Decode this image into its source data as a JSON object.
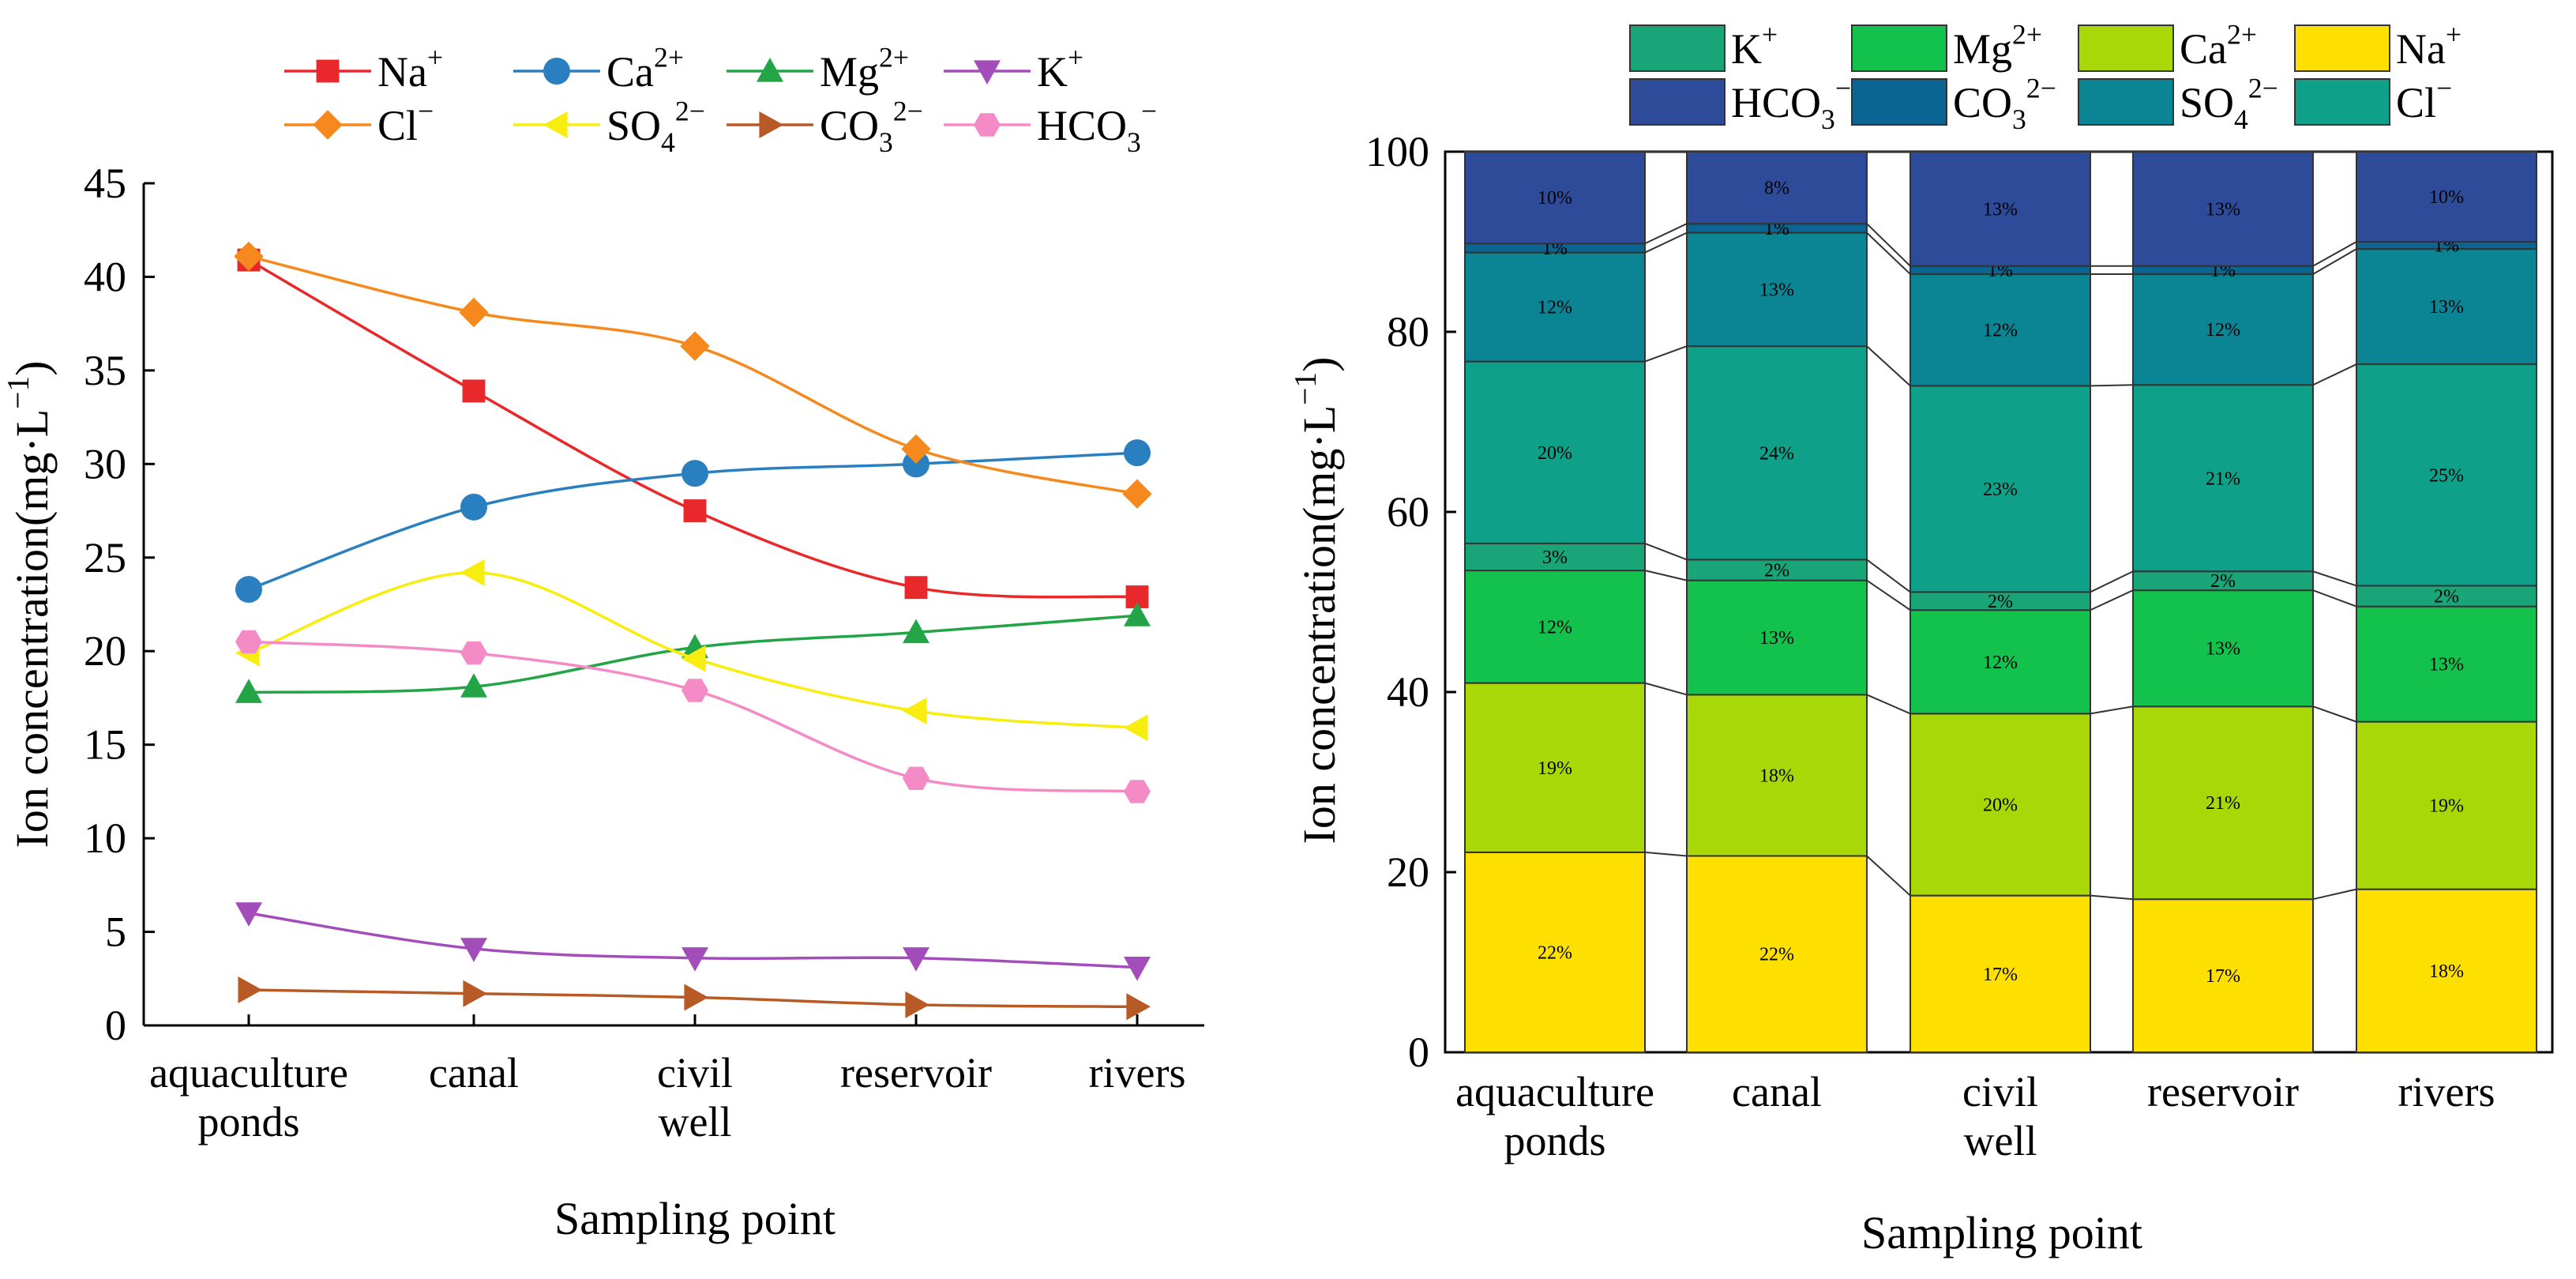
{
  "chart_data": [
    {
      "type": "line",
      "xlabel": "Sampling point",
      "ylabel": "Ion concentration(mg·L⁻¹)",
      "ylim": [
        0,
        45
      ],
      "yticks": [
        0,
        5,
        10,
        15,
        20,
        25,
        30,
        35,
        40,
        45
      ],
      "grid": false,
      "legend_position": "top",
      "categories": [
        {
          "label": "aquaculture ponds",
          "lines": [
            "aquaculture",
            "ponds"
          ]
        },
        {
          "label": "canal",
          "lines": [
            "canal"
          ]
        },
        {
          "label": "civil well",
          "lines": [
            "civil",
            "well"
          ]
        },
        {
          "label": "reservoir",
          "lines": [
            "reservoir"
          ]
        },
        {
          "label": "rivers",
          "lines": [
            "rivers"
          ]
        }
      ],
      "series": [
        {
          "name": "Na⁺",
          "base": "Na",
          "sup": "+",
          "sub": "",
          "color": "#e8282b",
          "marker": "square",
          "values": [
            40.9,
            33.9,
            27.5,
            23.4,
            22.9
          ]
        },
        {
          "name": "Ca²⁺",
          "base": "Ca",
          "sup": "2+",
          "sub": "",
          "color": "#2a7fc1",
          "marker": "circle",
          "values": [
            23.3,
            27.7,
            29.5,
            30.0,
            30.6
          ]
        },
        {
          "name": "Mg²⁺",
          "base": "Mg",
          "sup": "2+",
          "sub": "",
          "color": "#23a447",
          "marker": "triangle-up",
          "values": [
            17.8,
            18.1,
            20.2,
            21.0,
            21.9
          ]
        },
        {
          "name": "K⁺",
          "base": "K",
          "sup": "+",
          "sub": "",
          "color": "#a34dbb",
          "marker": "triangle-down",
          "values": [
            6.0,
            4.1,
            3.6,
            3.6,
            3.1
          ]
        },
        {
          "name": "Cl⁻",
          "base": "Cl",
          "sup": "−",
          "sub": "",
          "color": "#f5891d",
          "marker": "diamond",
          "values": [
            41.1,
            38.1,
            36.3,
            30.8,
            28.4
          ]
        },
        {
          "name": "SO₄²⁻",
          "base": "SO",
          "sup": "2−",
          "sub": "4",
          "color": "#f7ee0f",
          "marker": "triangle-left",
          "values": [
            19.9,
            24.2,
            19.6,
            16.8,
            15.9
          ]
        },
        {
          "name": "CO₃²⁻",
          "base": "CO",
          "sup": "2−",
          "sub": "3",
          "color": "#b85a26",
          "marker": "triangle-right",
          "values": [
            1.9,
            1.7,
            1.5,
            1.1,
            1.0
          ]
        },
        {
          "name": "HCO₃⁻",
          "base": "HCO",
          "sup": "−",
          "sub": "3",
          "color": "#f48ac6",
          "marker": "hexagon",
          "values": [
            20.5,
            19.9,
            17.9,
            13.2,
            12.5
          ]
        }
      ]
    },
    {
      "type": "bar",
      "stacked": true,
      "xlabel": "Sampling point",
      "ylabel": "Ion concentration(mg·L⁻¹)",
      "ylim": [
        0,
        100
      ],
      "yticks": [
        0,
        20,
        40,
        60,
        80,
        100
      ],
      "grid": false,
      "legend_position": "top",
      "categories": [
        {
          "label": "aquaculture ponds",
          "lines": [
            "aquaculture",
            "ponds"
          ]
        },
        {
          "label": "canal",
          "lines": [
            "canal"
          ]
        },
        {
          "label": "civil well",
          "lines": [
            "civil",
            "well"
          ]
        },
        {
          "label": "reservoir",
          "lines": [
            "reservoir"
          ]
        },
        {
          "label": "rivers",
          "lines": [
            "rivers"
          ]
        }
      ],
      "legend": [
        {
          "name": "K⁺",
          "base": "K",
          "sup": "+",
          "sub": "",
          "color": "#1aa579"
        },
        {
          "name": "Mg²⁺",
          "base": "Mg",
          "sup": "2+",
          "sub": "",
          "color": "#12c24c"
        },
        {
          "name": "Ca²⁺",
          "base": "Ca",
          "sup": "2+",
          "sub": "",
          "color": "#a9d808"
        },
        {
          "name": "Na⁺",
          "base": "Na",
          "sup": "+",
          "sub": "",
          "color": "#fee000"
        },
        {
          "name": "HCO₃⁻",
          "base": "HCO",
          "sup": "−",
          "sub": "3",
          "color": "#2d4b98"
        },
        {
          "name": "CO₃²⁻",
          "base": "CO",
          "sup": "2−",
          "sub": "3",
          "color": "#0b6592"
        },
        {
          "name": "SO₄²⁻",
          "base": "SO",
          "sup": "2−",
          "sub": "4",
          "color": "#0b8494"
        },
        {
          "name": "Cl⁻",
          "base": "Cl",
          "sup": "−",
          "sub": "",
          "color": "#0fa08a"
        }
      ],
      "series": [
        {
          "name": "Na⁺",
          "color": "#fee000",
          "label_color": "#333333",
          "values": [
            22.2,
            21.8,
            17.4,
            17.0,
            18.1
          ],
          "labels": [
            "22%",
            "22%",
            "17%",
            "17%",
            "18%"
          ]
        },
        {
          "name": "Ca²⁺",
          "color": "#a9d808",
          "label_color": "#333333",
          "values": [
            18.8,
            17.9,
            20.2,
            21.4,
            18.6
          ],
          "labels": [
            "19%",
            "18%",
            "20%",
            "21%",
            "19%"
          ]
        },
        {
          "name": "Mg²⁺",
          "color": "#12c24c",
          "label_color": "#333333",
          "values": [
            12.5,
            12.7,
            11.5,
            12.9,
            12.8
          ],
          "labels": [
            "12%",
            "13%",
            "12%",
            "13%",
            "13%"
          ]
        },
        {
          "name": "K⁺",
          "color": "#1aa579",
          "label_color": "#333333",
          "values": [
            3.0,
            2.3,
            2.0,
            2.1,
            2.3
          ],
          "labels": [
            "3%",
            "2%",
            "2%",
            "2%",
            "2%"
          ]
        },
        {
          "name": "Cl⁻",
          "color": "#0fa08a",
          "label_color": "#bfeee6",
          "values": [
            20.2,
            23.7,
            22.9,
            20.7,
            24.6
          ],
          "labels": [
            "20%",
            "24%",
            "23%",
            "21%",
            "25%"
          ]
        },
        {
          "name": "SO₄²⁻",
          "color": "#0b8494",
          "label_color": "#bfeee6",
          "values": [
            12.1,
            12.6,
            12.4,
            12.3,
            12.8
          ],
          "labels": [
            "12%",
            "13%",
            "12%",
            "12%",
            "13%"
          ]
        },
        {
          "name": "CO₃²⁻",
          "color": "#0b6592",
          "label_color": "#dde6f5",
          "values": [
            1.0,
            1.0,
            0.9,
            0.9,
            0.8
          ],
          "labels": [
            "1%",
            "1%",
            "1%",
            "1%",
            "1%"
          ]
        },
        {
          "name": "HCO₃⁻",
          "color": "#2d4b98",
          "label_color": "#dde6f5",
          "values": [
            10.2,
            8.0,
            12.7,
            12.7,
            10.0
          ],
          "labels": [
            "10%",
            "8%",
            "13%",
            "13%",
            "10%"
          ]
        }
      ]
    }
  ]
}
